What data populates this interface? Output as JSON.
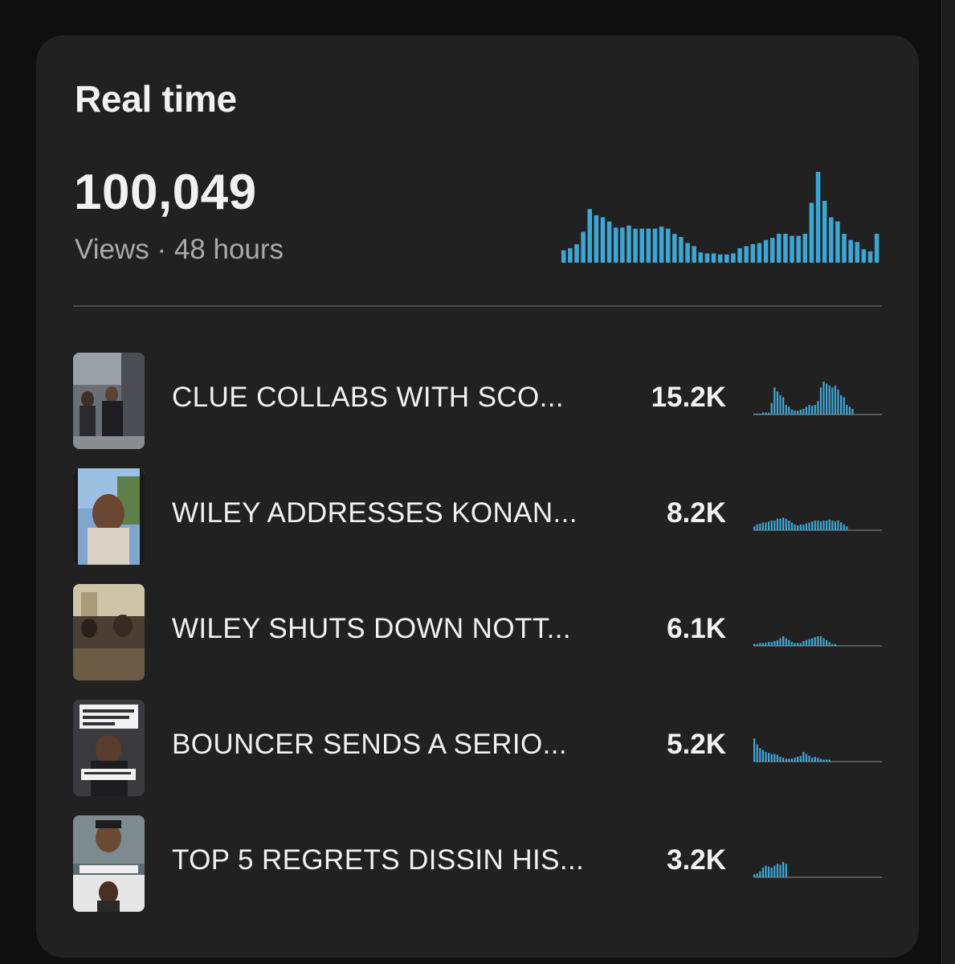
{
  "card": {
    "title": "Real time",
    "total_views": "100,049",
    "subtitle": "Views · 48 hours"
  },
  "colors": {
    "bar": "#3ea6d4",
    "baseline": "#6a6a6a",
    "card_bg": "#212121"
  },
  "main_chart": {
    "type": "bar",
    "values": [
      12,
      14,
      18,
      30,
      52,
      46,
      44,
      40,
      34,
      34,
      36,
      33,
      33,
      33,
      33,
      35,
      33,
      28,
      25,
      19,
      16,
      10,
      9,
      9,
      8,
      8,
      9,
      14,
      16,
      18,
      19,
      22,
      24,
      28,
      28,
      26,
      26,
      28,
      58,
      88,
      60,
      44,
      40,
      28,
      22,
      20,
      13,
      11,
      28
    ]
  },
  "videos": [
    {
      "thumb_icon": "video-thumbnail-group",
      "title": "CLUE COLLABS WITH SCO...",
      "views": "15.2K",
      "spark": [
        1,
        1,
        1,
        2,
        2,
        2,
        12,
        28,
        24,
        20,
        18,
        10,
        8,
        5,
        4,
        4,
        5,
        6,
        8,
        10,
        9,
        10,
        14,
        28,
        34,
        32,
        30,
        28,
        30,
        26,
        20,
        18,
        10,
        8,
        6
      ]
    },
    {
      "thumb_icon": "video-thumbnail-portrait",
      "title": "WILEY ADDRESSES KONAN...",
      "views": "8.2K",
      "spark": [
        4,
        6,
        7,
        8,
        8,
        9,
        10,
        10,
        12,
        12,
        13,
        12,
        10,
        8,
        6,
        5,
        6,
        6,
        7,
        8,
        9,
        10,
        10,
        9,
        10,
        10,
        11,
        10,
        9,
        10,
        8,
        6,
        4
      ]
    },
    {
      "thumb_icon": "video-thumbnail-crowd",
      "title": "WILEY SHUTS DOWN NOTT...",
      "views": "6.1K",
      "spark": [
        2,
        2,
        3,
        3,
        3,
        4,
        4,
        5,
        6,
        8,
        10,
        8,
        6,
        4,
        3,
        3,
        3,
        5,
        6,
        7,
        8,
        9,
        10,
        10,
        8,
        6,
        4,
        2,
        2
      ]
    },
    {
      "thumb_icon": "video-thumbnail-podcast",
      "title": "BOUNCER SENDS A SERIO...",
      "views": "5.2K",
      "spark": [
        24,
        18,
        14,
        12,
        10,
        9,
        8,
        8,
        7,
        5,
        4,
        3,
        3,
        3,
        4,
        5,
        6,
        10,
        8,
        6,
        4,
        5,
        4,
        3,
        2,
        2,
        2
      ]
    },
    {
      "thumb_icon": "video-thumbnail-faces",
      "title": "TOP 5 REGRETS DISSIN HIS...",
      "views": "3.2K",
      "spark": [
        3,
        4,
        6,
        10,
        12,
        11,
        10,
        12,
        14,
        13,
        16,
        14
      ]
    }
  ]
}
